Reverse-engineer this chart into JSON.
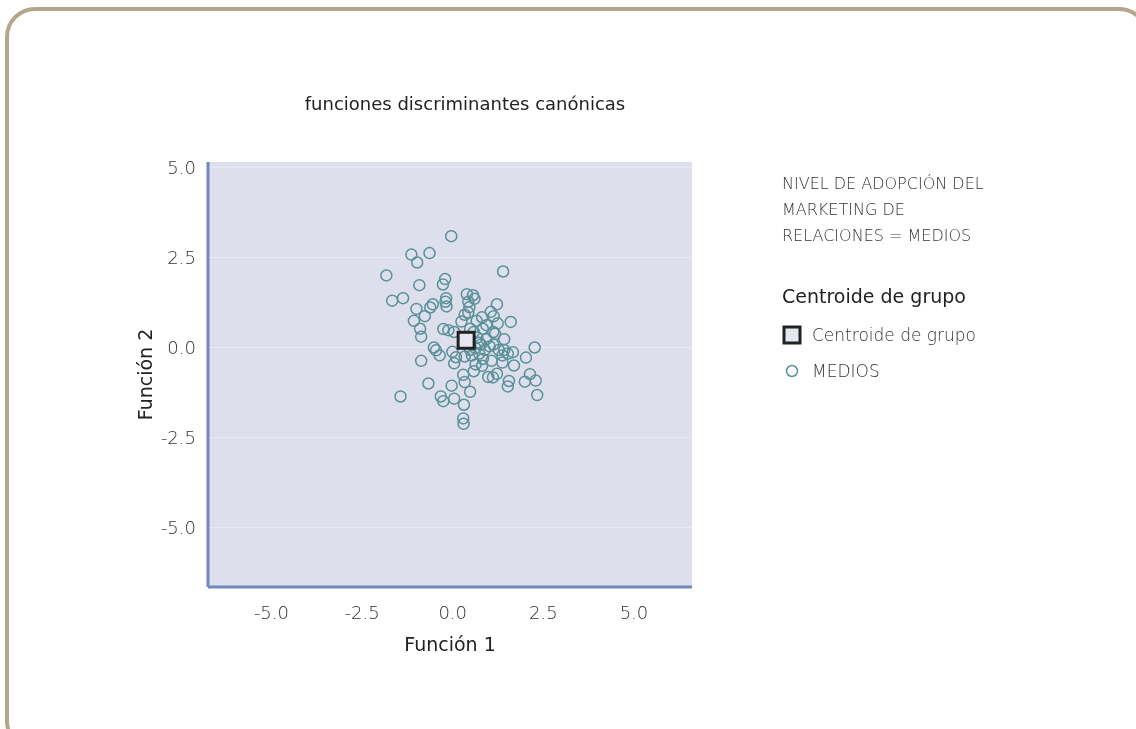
{
  "chart_data": {
    "type": "scatter",
    "title": "funciones discriminantes canónicas",
    "xlabel": "Función 1",
    "ylabel": "Función 2",
    "legend_title": "Centroide de grupo",
    "annotations": [
      "NIVEL DE ADOPCIÓN DEL MARKETING DE RELACIONES = MEDIOS"
    ],
    "xlim": [
      -6.75,
      6.6
    ],
    "ylim": [
      -6.65,
      5.15
    ],
    "xticks": [
      {
        "value": -5,
        "label": "-5.0"
      },
      {
        "value": -2.5,
        "label": "-2.5"
      },
      {
        "value": 0,
        "label": "0.0"
      },
      {
        "value": 2.5,
        "label": "2.5"
      },
      {
        "value": 5,
        "label": "5.0"
      }
    ],
    "yticks": [
      {
        "value": -5,
        "label": "-5.0"
      },
      {
        "value": -2.5,
        "label": "-2.5"
      },
      {
        "value": 0,
        "label": "0.0"
      },
      {
        "value": 2.5,
        "label": "2.5"
      },
      {
        "value": 5,
        "label": "5.0"
      }
    ],
    "grid": "y",
    "legend": "right",
    "series": [
      {
        "name": "Centroide de grupo",
        "color": "#222222",
        "marker": "square",
        "x": [
          0.37
        ],
        "values": [
          0.2
        ]
      },
      {
        "name": "MEDIOS",
        "color": "#5a9099",
        "marker": "circle",
        "x": [
          -0.04,
          -1.14,
          -0.64,
          -0.98,
          -1.83,
          1.39,
          -0.21,
          -0.27,
          -0.92,
          -1.67,
          -1.37,
          -1.0,
          -0.55,
          -0.62,
          -0.18,
          -0.2,
          -0.17,
          0.39,
          0.56,
          0.6,
          0.43,
          0.46,
          0.43,
          0.33,
          1.22,
          -0.77,
          -1.07,
          -0.9,
          -0.87,
          -0.26,
          -0.12,
          0.04,
          1.6,
          1.05,
          1.13,
          0.66,
          0.81,
          1.24,
          0.93,
          0.83,
          1.12,
          1.17,
          1.42,
          0.93,
          0.78,
          1.02,
          -0.52,
          -0.46,
          -0.36,
          2.26,
          1.42,
          1.52,
          1.66,
          1.37,
          2.02,
          -0.01,
          0.09,
          0.33,
          0.53,
          0.73,
          0.83,
          1.07,
          1.37,
          -0.87,
          0.04,
          0.63,
          0.81,
          1.69,
          0.58,
          0.29,
          0.98,
          1.11,
          1.22,
          1.55,
          1.52,
          2.13,
          2.29,
          1.99,
          2.33,
          -0.67,
          -0.03,
          0.33,
          0.48,
          -1.44,
          -0.33,
          -0.26,
          0.04,
          0.31,
          0.29,
          0.3,
          0.24,
          0.48,
          0.58,
          0.68,
          0.73,
          0.63,
          0.48,
          0.88,
          1.12,
          1.27
        ],
        "values": [
          3.09,
          2.58,
          2.62,
          2.36,
          2.0,
          2.11,
          1.9,
          1.75,
          1.73,
          1.3,
          1.37,
          1.07,
          1.2,
          1.11,
          1.37,
          1.27,
          1.14,
          1.48,
          1.45,
          1.35,
          1.27,
          1.12,
          0.97,
          0.91,
          1.2,
          0.87,
          0.74,
          0.52,
          0.3,
          0.51,
          0.48,
          0.43,
          0.71,
          0.99,
          0.87,
          0.74,
          0.84,
          0.67,
          0.62,
          0.52,
          0.43,
          0.38,
          0.23,
          0.23,
          0.08,
          0.03,
          0.0,
          -0.08,
          -0.22,
          0.0,
          -0.07,
          -0.17,
          -0.13,
          -0.22,
          -0.28,
          -0.12,
          -0.27,
          -0.25,
          -0.22,
          -0.17,
          -0.32,
          -0.37,
          -0.42,
          -0.37,
          -0.44,
          -0.47,
          -0.51,
          -0.5,
          -0.66,
          -0.76,
          -0.82,
          -0.83,
          -0.73,
          -0.93,
          -1.08,
          -0.74,
          -0.92,
          -0.95,
          -1.32,
          -1.0,
          -1.06,
          -0.96,
          -1.23,
          -1.36,
          -1.36,
          -1.49,
          -1.42,
          -1.59,
          -1.97,
          -2.12,
          0.72,
          0.52,
          0.43,
          0.28,
          0.13,
          -0.02,
          -0.07,
          -0.07,
          0.08,
          -0.07
        ]
      }
    ]
  }
}
